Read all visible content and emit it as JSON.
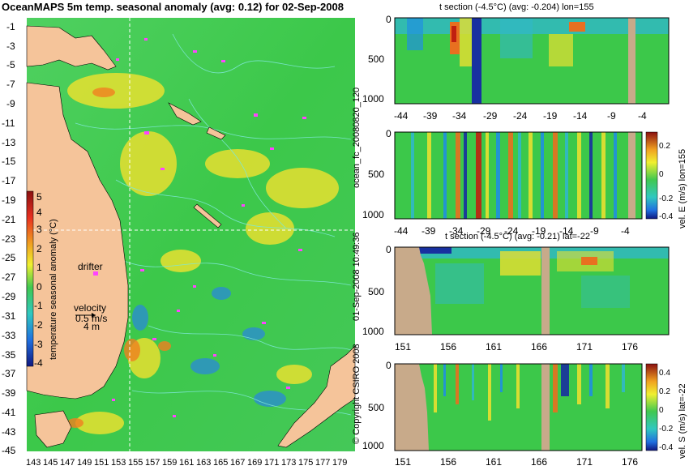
{
  "header": {
    "main_title": "OceanMAPS 5m temp. seasonal anomaly (avg: 0.12) for 02-Sep-2008"
  },
  "map": {
    "y_ticks": [
      "-1",
      "-3",
      "-5",
      "-7",
      "-9",
      "-11",
      "-13",
      "-15",
      "-17",
      "-19",
      "-21",
      "-23",
      "-25",
      "-27",
      "-29",
      "-31",
      "-33",
      "-35",
      "-37",
      "-39",
      "-41",
      "-43",
      "-45"
    ],
    "x_ticks": [
      "143",
      "145",
      "147",
      "149",
      "151",
      "153",
      "155",
      "157",
      "159",
      "161",
      "163",
      "165",
      "167",
      "169",
      "171",
      "173",
      "175",
      "177",
      "179"
    ],
    "colorbar_ticks": [
      "5",
      "4",
      "3",
      "2",
      "1",
      "0",
      "-1",
      "-2",
      "-3",
      "-4"
    ],
    "colorbar_label": "temperature seasonal anomaly (°C)",
    "drifter_label": "drifter",
    "velocity_label": "velocity",
    "velocity_scale_1": "0.5 m/s",
    "velocity_scale_2": "4 m"
  },
  "side_texts": {
    "model_run": "ocean_fc_20080820_120",
    "run_time": "01-Sep-2008 10:49:36",
    "copyright": "© Copyright CSIRO 2008"
  },
  "panels": [
    {
      "title": "t section (-4.5°C) (avg: -0.204) lon=155",
      "y_ticks": [
        "0",
        "500",
        "1000"
      ],
      "x_ticks": [
        "-44",
        "-39",
        "-34",
        "-29",
        "-24",
        "-19",
        "-14",
        "-9",
        "-4"
      ]
    },
    {
      "title": "",
      "y_ticks": [
        "0",
        "500",
        "1000"
      ],
      "x_ticks": [
        "-44",
        "-39",
        "-34",
        "-29",
        "-24",
        "-19",
        "-14",
        "-9",
        "-4"
      ],
      "cb_label": "vel. E (m/s)  lon=155",
      "cb_ticks": [
        "0.2",
        "0",
        "-0.2",
        "-0.4"
      ]
    },
    {
      "title": "t section (-4.5°C) (avg: -0.21) lat=-22",
      "y_ticks": [
        "0",
        "500",
        "1000"
      ],
      "x_ticks": [
        "151",
        "156",
        "161",
        "166",
        "171",
        "176"
      ]
    },
    {
      "title": "",
      "y_ticks": [
        "0",
        "500",
        "1000"
      ],
      "x_ticks": [
        "151",
        "156",
        "161",
        "166",
        "171",
        "176"
      ],
      "cb_label": "vel. S (m/s)  lat=-22",
      "cb_ticks": [
        "0.4",
        "0.2",
        "0",
        "-0.2",
        "-0.4"
      ]
    }
  ],
  "colors": {
    "land": "#f5c49a",
    "section_land": "#c8aa8a",
    "ocean_green": "#3cc84a",
    "contour": "#7ee8d8",
    "drifter": "#ff44ff"
  }
}
